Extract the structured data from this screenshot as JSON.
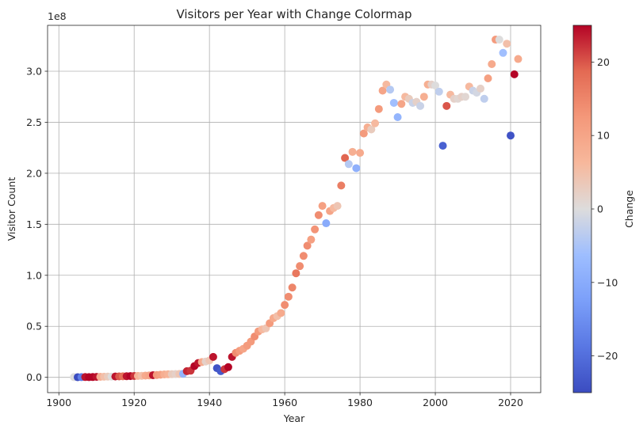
{
  "chart_data": {
    "type": "scatter",
    "title": "Visitors per Year with Change Colormap",
    "xlabel": "Year",
    "ylabel": "Visitor Count",
    "y_offset_text": "1e8",
    "y_multiplier": 100000000,
    "xlim": [
      1897,
      2028
    ],
    "ylim": [
      -1.5,
      34.5
    ],
    "x_ticks": [
      1900,
      1920,
      1940,
      1960,
      1980,
      2000,
      2020
    ],
    "x_tick_labels": [
      "1900",
      "1920",
      "1940",
      "1960",
      "1980",
      "2000",
      "2020"
    ],
    "y_ticks": [
      0,
      5,
      10,
      15,
      20,
      25,
      30
    ],
    "y_tick_labels": [
      "0.0",
      "0.5",
      "1.0",
      "1.5",
      "2.0",
      "2.5",
      "3.0"
    ],
    "grid": true,
    "colormap": "coolwarm",
    "colorbar": {
      "label": "Change",
      "range": [
        -25,
        25
      ],
      "ticks": [
        -20,
        -10,
        0,
        10,
        20
      ],
      "tick_labels": [
        "−20",
        "−10",
        "0",
        "10",
        "20"
      ]
    },
    "points": [
      {
        "year": 1904,
        "visitors": 0.02,
        "change": 0
      },
      {
        "year": 1905,
        "visitors": 0.01,
        "change": -25
      },
      {
        "year": 1906,
        "visitors": 0.02,
        "change": -18
      },
      {
        "year": 1907,
        "visitors": 0.03,
        "change": 24
      },
      {
        "year": 1908,
        "visitors": 0.02,
        "change": 25
      },
      {
        "year": 1909,
        "visitors": 0.03,
        "change": 25
      },
      {
        "year": 1910,
        "visitors": 0.04,
        "change": 24
      },
      {
        "year": 1911,
        "visitors": 0.05,
        "change": 8
      },
      {
        "year": 1912,
        "visitors": 0.06,
        "change": 5
      },
      {
        "year": 1913,
        "visitors": 0.07,
        "change": 3
      },
      {
        "year": 1914,
        "visitors": 0.07,
        "change": 0
      },
      {
        "year": 1915,
        "visitors": 0.08,
        "change": 24
      },
      {
        "year": 1916,
        "visitors": 0.09,
        "change": 20
      },
      {
        "year": 1917,
        "visitors": 0.1,
        "change": 18
      },
      {
        "year": 1918,
        "visitors": 0.11,
        "change": 24
      },
      {
        "year": 1919,
        "visitors": 0.12,
        "change": 25
      },
      {
        "year": 1920,
        "visitors": 0.13,
        "change": 22
      },
      {
        "year": 1921,
        "visitors": 0.14,
        "change": 7
      },
      {
        "year": 1922,
        "visitors": 0.15,
        "change": 5
      },
      {
        "year": 1923,
        "visitors": 0.17,
        "change": 9
      },
      {
        "year": 1924,
        "visitors": 0.19,
        "change": 10
      },
      {
        "year": 1925,
        "visitors": 0.21,
        "change": 24
      },
      {
        "year": 1926,
        "visitors": 0.23,
        "change": 12
      },
      {
        "year": 1927,
        "visitors": 0.26,
        "change": 11
      },
      {
        "year": 1928,
        "visitors": 0.28,
        "change": 8
      },
      {
        "year": 1929,
        "visitors": 0.3,
        "change": 7
      },
      {
        "year": 1930,
        "visitors": 0.31,
        "change": 3
      },
      {
        "year": 1931,
        "visitors": 0.32,
        "change": 2
      },
      {
        "year": 1932,
        "visitors": 0.33,
        "change": 4
      },
      {
        "year": 1933,
        "visitors": 0.35,
        "change": -8
      },
      {
        "year": 1934,
        "visitors": 0.6,
        "change": 23
      },
      {
        "year": 1935,
        "visitors": 0.65,
        "change": 22
      },
      {
        "year": 1936,
        "visitors": 1.1,
        "change": 25
      },
      {
        "year": 1937,
        "visitors": 1.4,
        "change": 24
      },
      {
        "year": 1938,
        "visitors": 1.5,
        "change": 9
      },
      {
        "year": 1939,
        "visitors": 1.55,
        "change": 2
      },
      {
        "year": 1940,
        "visitors": 1.65,
        "change": 4
      },
      {
        "year": 1941,
        "visitors": 2.0,
        "change": 24
      },
      {
        "year": 1942,
        "visitors": 0.9,
        "change": -24
      },
      {
        "year": 1943,
        "visitors": 0.6,
        "change": -23
      },
      {
        "year": 1944,
        "visitors": 0.8,
        "change": 22
      },
      {
        "year": 1945,
        "visitors": 1.0,
        "change": 25
      },
      {
        "year": 1946,
        "visitors": 2.0,
        "change": 24
      },
      {
        "year": 1947,
        "visitors": 2.4,
        "change": 14
      },
      {
        "year": 1948,
        "visitors": 2.6,
        "change": 12
      },
      {
        "year": 1949,
        "visitors": 2.8,
        "change": 10
      },
      {
        "year": 1950,
        "visitors": 3.1,
        "change": 12
      },
      {
        "year": 1951,
        "visitors": 3.5,
        "change": 12
      },
      {
        "year": 1952,
        "visitors": 4.0,
        "change": 14
      },
      {
        "year": 1953,
        "visitors": 4.5,
        "change": 12
      },
      {
        "year": 1954,
        "visitors": 4.7,
        "change": 6
      },
      {
        "year": 1955,
        "visitors": 4.8,
        "change": 4
      },
      {
        "year": 1956,
        "visitors": 5.3,
        "change": 12
      },
      {
        "year": 1957,
        "visitors": 5.8,
        "change": 9
      },
      {
        "year": 1958,
        "visitors": 6.0,
        "change": 5
      },
      {
        "year": 1959,
        "visitors": 6.3,
        "change": 9
      },
      {
        "year": 1960,
        "visitors": 7.1,
        "change": 14
      },
      {
        "year": 1961,
        "visitors": 7.9,
        "change": 14
      },
      {
        "year": 1962,
        "visitors": 8.8,
        "change": 15
      },
      {
        "year": 1963,
        "visitors": 10.2,
        "change": 17
      },
      {
        "year": 1964,
        "visitors": 10.9,
        "change": 14
      },
      {
        "year": 1965,
        "visitors": 11.9,
        "change": 14
      },
      {
        "year": 1966,
        "visitors": 12.9,
        "change": 14
      },
      {
        "year": 1967,
        "visitors": 13.5,
        "change": 11
      },
      {
        "year": 1968,
        "visitors": 14.5,
        "change": 13
      },
      {
        "year": 1969,
        "visitors": 15.9,
        "change": 14
      },
      {
        "year": 1970,
        "visitors": 16.8,
        "change": 11
      },
      {
        "year": 1971,
        "visitors": 15.1,
        "change": -10
      },
      {
        "year": 1972,
        "visitors": 16.3,
        "change": 10
      },
      {
        "year": 1973,
        "visitors": 16.6,
        "change": 6
      },
      {
        "year": 1974,
        "visitors": 16.8,
        "change": 4
      },
      {
        "year": 1975,
        "visitors": 18.8,
        "change": 16
      },
      {
        "year": 1976,
        "visitors": 21.5,
        "change": 19
      },
      {
        "year": 1977,
        "visitors": 20.9,
        "change": -4
      },
      {
        "year": 1978,
        "visitors": 22.1,
        "change": 8
      },
      {
        "year": 1979,
        "visitors": 20.5,
        "change": -9
      },
      {
        "year": 1980,
        "visitors": 22.0,
        "change": 9
      },
      {
        "year": 1981,
        "visitors": 23.9,
        "change": 12
      },
      {
        "year": 1982,
        "visitors": 24.5,
        "change": 8
      },
      {
        "year": 1983,
        "visitors": 24.3,
        "change": 3
      },
      {
        "year": 1984,
        "visitors": 24.9,
        "change": 6
      },
      {
        "year": 1985,
        "visitors": 26.3,
        "change": 12
      },
      {
        "year": 1986,
        "visitors": 28.1,
        "change": 10
      },
      {
        "year": 1987,
        "visitors": 28.7,
        "change": 6
      },
      {
        "year": 1988,
        "visitors": 28.2,
        "change": -4
      },
      {
        "year": 1989,
        "visitors": 26.9,
        "change": -6
      },
      {
        "year": 1990,
        "visitors": 25.5,
        "change": -8
      },
      {
        "year": 1991,
        "visitors": 26.8,
        "change": 10
      },
      {
        "year": 1992,
        "visitors": 27.5,
        "change": 6
      },
      {
        "year": 1993,
        "visitors": 27.3,
        "change": 3
      },
      {
        "year": 1994,
        "visitors": 26.9,
        "change": -2
      },
      {
        "year": 1995,
        "visitors": 27.0,
        "change": 2
      },
      {
        "year": 1996,
        "visitors": 26.6,
        "change": -2
      },
      {
        "year": 1997,
        "visitors": 27.5,
        "change": 8
      },
      {
        "year": 1998,
        "visitors": 28.7,
        "change": 8
      },
      {
        "year": 1999,
        "visitors": 28.7,
        "change": 2
      },
      {
        "year": 2000,
        "visitors": 28.6,
        "change": 0
      },
      {
        "year": 2001,
        "visitors": 28.0,
        "change": -3
      },
      {
        "year": 2002,
        "visitors": 22.7,
        "change": -22
      },
      {
        "year": 2003,
        "visitors": 26.6,
        "change": 20
      },
      {
        "year": 2004,
        "visitors": 27.7,
        "change": 6
      },
      {
        "year": 2005,
        "visitors": 27.3,
        "change": 2
      },
      {
        "year": 2006,
        "visitors": 27.3,
        "change": 1
      },
      {
        "year": 2007,
        "visitors": 27.5,
        "change": 2
      },
      {
        "year": 2008,
        "visitors": 27.5,
        "change": 1
      },
      {
        "year": 2009,
        "visitors": 28.5,
        "change": 6
      },
      {
        "year": 2010,
        "visitors": 28.1,
        "change": -2
      },
      {
        "year": 2011,
        "visitors": 27.9,
        "change": -1
      },
      {
        "year": 2012,
        "visitors": 28.3,
        "change": 2
      },
      {
        "year": 2013,
        "visitors": 27.3,
        "change": -3
      },
      {
        "year": 2014,
        "visitors": 29.3,
        "change": 11
      },
      {
        "year": 2015,
        "visitors": 30.7,
        "change": 9
      },
      {
        "year": 2016,
        "visitors": 33.1,
        "change": 12
      },
      {
        "year": 2017,
        "visitors": 33.1,
        "change": 0
      },
      {
        "year": 2018,
        "visitors": 31.8,
        "change": -6
      },
      {
        "year": 2019,
        "visitors": 32.7,
        "change": 5
      },
      {
        "year": 2020,
        "visitors": 23.7,
        "change": -24
      },
      {
        "year": 2021,
        "visitors": 29.7,
        "change": 25
      },
      {
        "year": 2022,
        "visitors": 31.2,
        "change": 9
      }
    ]
  }
}
